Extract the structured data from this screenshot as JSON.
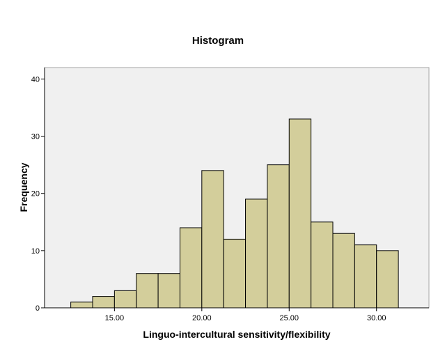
{
  "chart_data": {
    "type": "bar",
    "title": "Histogram",
    "xlabel": "Linguo-intercultural sensitivity/flexibility",
    "ylabel": "Frequency",
    "bin_edges": [
      12.5,
      13.75,
      15.0,
      16.25,
      17.5,
      18.75,
      20.0,
      21.25,
      22.5,
      23.75,
      25.0,
      26.25,
      27.5,
      28.75,
      30.0,
      31.25
    ],
    "values": [
      1,
      2,
      3,
      6,
      6,
      14,
      24,
      12,
      19,
      25,
      33,
      15,
      13,
      11,
      10
    ],
    "xlim": [
      11.0,
      33.0
    ],
    "ylim": [
      0,
      42
    ],
    "xticks": [
      15.0,
      20.0,
      25.0,
      30.0
    ],
    "xtick_labels": [
      "15.00",
      "20.00",
      "25.00",
      "30.00"
    ],
    "yticks": [
      0,
      10,
      20,
      30,
      40
    ],
    "ytick_labels": [
      "0",
      "10",
      "20",
      "30",
      "40"
    ],
    "grid": false,
    "colors": {
      "bar_fill": "#d3ce9b",
      "bar_stroke": "#000000",
      "plot_bg": "#f0f0f0",
      "frame": "#a6a6a6"
    }
  }
}
